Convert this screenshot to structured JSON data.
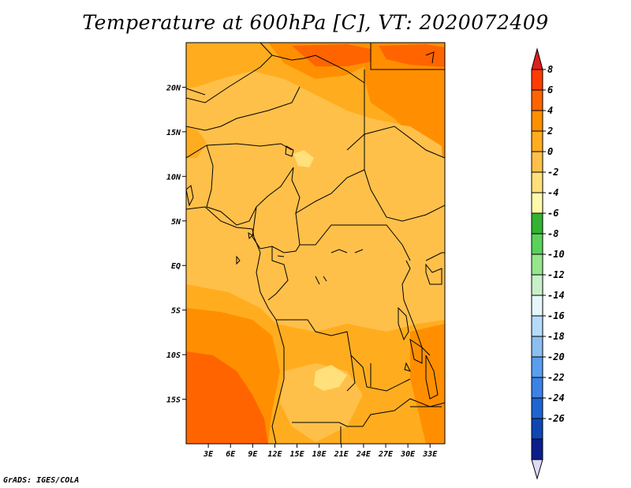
{
  "title": "Temperature at 600hPa [C], VT: 2020072409",
  "credit": "GrADS: IGES/COLA",
  "map": {
    "lat_labels": [
      {
        "label": "20N",
        "lat": 20
      },
      {
        "label": "15N",
        "lat": 15
      },
      {
        "label": "10N",
        "lat": 10
      },
      {
        "label": "5N",
        "lat": 5
      },
      {
        "label": "EQ",
        "lat": 0
      },
      {
        "label": "5S",
        "lat": -5
      },
      {
        "label": "10S",
        "lat": -10
      },
      {
        "label": "15S",
        "lat": -15
      }
    ],
    "lon_labels": [
      {
        "label": "3E",
        "lon": 3
      },
      {
        "label": "6E",
        "lon": 6
      },
      {
        "label": "9E",
        "lon": 9
      },
      {
        "label": "12E",
        "lon": 12
      },
      {
        "label": "15E",
        "lon": 15
      },
      {
        "label": "18E",
        "lon": 18
      },
      {
        "label": "21E",
        "lon": 21
      },
      {
        "label": "24E",
        "lon": 24
      },
      {
        "label": "27E",
        "lon": 27
      },
      {
        "label": "30E",
        "lon": 30
      },
      {
        "label": "33E",
        "lon": 33
      }
    ],
    "lon_range": [
      0,
      35
    ],
    "lat_range": [
      -20,
      25
    ]
  },
  "colorbar": {
    "labels": [
      "8",
      "6",
      "4",
      "2",
      "0",
      "-2",
      "-4",
      "-6",
      "-8",
      "-10",
      "-12",
      "-14",
      "-16",
      "-18",
      "-20",
      "-22",
      "-24",
      "-26"
    ],
    "colors": [
      "#ff3c00",
      "#ff6400",
      "#ff8f00",
      "#ffad1e",
      "#ffc04a",
      "#ffe07a",
      "#fffaaa",
      "#32b432",
      "#5ad25a",
      "#96e68c",
      "#c8f0c8",
      "#e6f5fa",
      "#b4dcfa",
      "#8cbef0",
      "#5a9ef0",
      "#3c82e6",
      "#1e64d2",
      "#0f46b4",
      "#0a1e8c"
    ],
    "top_arrow_color": "#e11e1e",
    "bottom_arrow_color": "#dcdcf5"
  }
}
